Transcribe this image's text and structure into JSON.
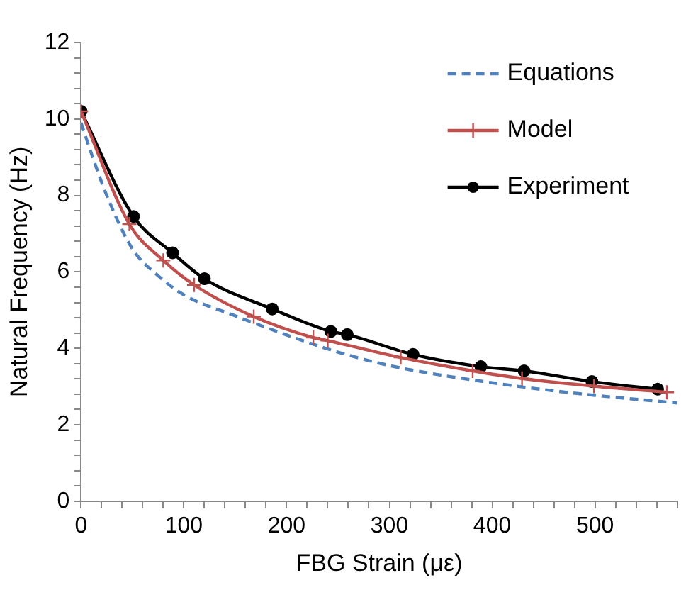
{
  "chart_data": {
    "type": "line",
    "xlabel": "FBG Strain (με)",
    "ylabel": "Natural Frequency (Hz)",
    "xlim": [
      0,
      580
    ],
    "xticks": [
      0,
      {
        "value": 20,
        "label": null
      },
      {
        "value": 40,
        "label": null
      },
      {
        "value": 60,
        "label": null
      },
      {
        "value": 80,
        "label": null
      },
      100,
      {
        "value": 120,
        "label": null
      },
      {
        "value": 140,
        "label": null
      },
      {
        "value": 160,
        "label": null
      },
      {
        "value": 180,
        "label": null
      },
      200,
      {
        "value": 220,
        "label": null
      },
      {
        "value": 240,
        "label": null
      },
      {
        "value": 260,
        "label": null
      },
      {
        "value": 280,
        "label": null
      },
      300,
      {
        "value": 320,
        "label": null
      },
      {
        "value": 340,
        "label": null
      },
      {
        "value": 360,
        "label": null
      },
      {
        "value": 380,
        "label": null
      },
      400,
      {
        "value": 420,
        "label": null
      },
      {
        "value": 440,
        "label": null
      },
      {
        "value": 460,
        "label": null
      },
      {
        "value": 480,
        "label": null
      },
      500,
      {
        "value": 520,
        "label": null
      },
      {
        "value": 540,
        "label": null
      },
      {
        "value": 560,
        "label": null
      },
      {
        "value": 580,
        "label": null
      }
    ],
    "ylim": [
      0,
      12
    ],
    "yticks": [
      0,
      {
        "value": 0.4,
        "label": null
      },
      {
        "value": 0.8,
        "label": null
      },
      {
        "value": 1.2,
        "label": null
      },
      {
        "value": 1.6,
        "label": null
      },
      2,
      {
        "value": 2.4,
        "label": null
      },
      {
        "value": 2.8,
        "label": null
      },
      {
        "value": 3.2,
        "label": null
      },
      {
        "value": 3.6,
        "label": null
      },
      4,
      {
        "value": 4.4,
        "label": null
      },
      {
        "value": 4.8,
        "label": null
      },
      {
        "value": 5.2,
        "label": null
      },
      {
        "value": 5.6,
        "label": null
      },
      6,
      {
        "value": 6.4,
        "label": null
      },
      {
        "value": 6.8,
        "label": null
      },
      {
        "value": 7.2,
        "label": null
      },
      {
        "value": 7.6,
        "label": null
      },
      8,
      {
        "value": 8.4,
        "label": null
      },
      {
        "value": 8.8,
        "label": null
      },
      {
        "value": 9.2,
        "label": null
      },
      {
        "value": 9.6,
        "label": null
      },
      10,
      {
        "value": 10.4,
        "label": null
      },
      {
        "value": 10.8,
        "label": null
      },
      {
        "value": 11.2,
        "label": null
      },
      {
        "value": 11.6,
        "label": null
      },
      12
    ],
    "grid": false,
    "legend": "top right",
    "series": [
      {
        "name": "Equations",
        "color": "#4f81bd",
        "line_style": "dashed",
        "marker": "none",
        "x": [
          0,
          10,
          25,
          50,
          75,
          100,
          150,
          200,
          250,
          300,
          350,
          400,
          450,
          500,
          580
        ],
        "values": [
          9.9,
          9.1,
          8.0,
          6.6,
          5.9,
          5.4,
          4.85,
          4.35,
          3.9,
          3.55,
          3.3,
          3.1,
          2.92,
          2.77,
          2.57
        ]
      },
      {
        "name": "Model",
        "color": "#c0504d",
        "line_style": "solid",
        "marker": "cross",
        "x": [
          0,
          47,
          80,
          110,
          168,
          226,
          240,
          311,
          381,
          429,
          499,
          570
        ],
        "values": [
          10.2,
          7.25,
          6.3,
          5.66,
          4.83,
          4.28,
          4.2,
          3.76,
          3.41,
          3.21,
          3.01,
          2.85
        ]
      },
      {
        "name": "Experiment",
        "color": "#000000",
        "line_style": "solid",
        "marker": "circle",
        "x": [
          0,
          51,
          89,
          120,
          186,
          243,
          259,
          323,
          389,
          431,
          497,
          561
        ],
        "values": [
          10.2,
          7.45,
          6.5,
          5.82,
          5.03,
          4.44,
          4.36,
          3.84,
          3.52,
          3.41,
          3.13,
          2.93
        ]
      }
    ]
  }
}
